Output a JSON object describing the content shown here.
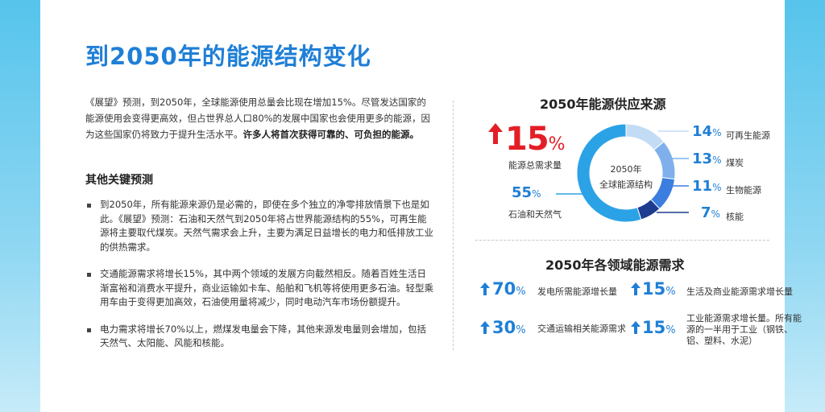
{
  "title": "到2050年的能源结构变化",
  "intro_normal": "《展望》预测，到2050年，全球能源使用总量会比现在增加15%。尽管发达国家的能源使用会变得更高效，但占世界总人口80%的发展中国家也会使用更多的能源，因为这些国家仍将致力于提升生活水平。",
  "intro_bold": "许多人将首次获得可靠的、可负担的能源。",
  "other_heading": "其他关键预测",
  "bullets": [
    "到2050年，所有能源来源仍是必需的，即使在多个独立的净零排放情景下也是如此。《展望》预测：石油和天然气到2050年将占世界能源结构的55%，可再生能源将主要取代煤炭。天然气需求会上升，主要为满足日益增长的电力和低排放工业的供热需求。",
    "交通能源需求将增长15%，其中两个领域的发展方向截然相反。随着百姓生活日渐富裕和消费水平提升，商业运输如卡车、船舶和飞机等将使用更多石油。轻型乘用车由于变得更加高效，石油使用量将减少，同时电动汽车市场份额提升。",
    "电力需求将增长70%以上，燃煤发电量会下降，其他来源发电量则会增加，包括天然气、太阳能、风能和核能。"
  ],
  "supply": {
    "heading": "2050年能源供应来源",
    "total_value": "15",
    "total_pct": "%",
    "total_label": "能源总需求量",
    "oil_gas_value": "55",
    "oil_gas_pct": "%",
    "oil_gas_label": "石油和天然气",
    "center_line1": "2050年",
    "center_line2": "全球能源结构",
    "items": [
      {
        "value": "14",
        "pct": "%",
        "label": "可再生能源"
      },
      {
        "value": "13",
        "pct": "%",
        "label": "煤炭"
      },
      {
        "value": "11",
        "pct": "%",
        "label": "生物能源"
      },
      {
        "value": "7",
        "pct": "%",
        "label": "核能"
      }
    ],
    "segment_colors": [
      "#c3dcf5",
      "#7fb0ec",
      "#3b7ee0",
      "#1d3c8f",
      "#2ba2e6"
    ]
  },
  "demand": {
    "heading": "2050年各领域能源需求",
    "stats": [
      {
        "value": "70",
        "pct": "%",
        "label": "发电所需能源增长量"
      },
      {
        "value": "15",
        "pct": "%",
        "label": "生活及商业能源需求增长量"
      },
      {
        "value": "30",
        "pct": "%",
        "label": "交通运输相关能源需求"
      },
      {
        "value": "15",
        "pct": "%",
        "label": "工业能源需求增长量。所有能源的一半用于工业（钢铁、铝、塑料、水泥）"
      }
    ]
  },
  "colors": {
    "accent": "#1f7fd6",
    "red": "#e41e26"
  }
}
